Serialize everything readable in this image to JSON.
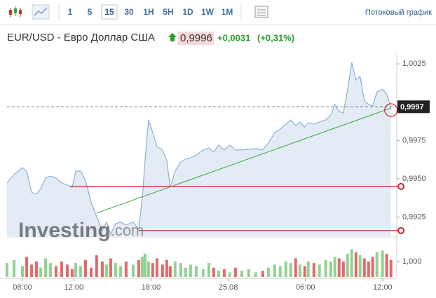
{
  "toolbar": {
    "intervals": [
      "1",
      "5",
      "15",
      "30",
      "1H",
      "5H",
      "1D",
      "1W",
      "1M"
    ],
    "selected": 2,
    "stream_label": "Потоковый график"
  },
  "header": {
    "symbol": "EUR/USD - Евро Доллар США",
    "price": "0,9996",
    "change": "+0,0031",
    "change_pct": "(+0,31%)"
  },
  "watermark": {
    "brand": "Investing",
    "suffix": ".com"
  },
  "chart_data": [
    {
      "type": "area",
      "color": "#8db1d6",
      "fill": "#e3ecf5",
      "x": [
        6.8,
        7.35,
        8,
        8.33,
        8.71,
        9.09,
        9.42,
        9.8,
        10.18,
        10.61,
        11.05,
        11.49,
        11.87,
        12.14,
        12.52,
        12.9,
        13.34,
        13.77,
        14.21,
        14.54,
        14.86,
        15.24,
        15.63,
        16.06,
        16.61,
        17.04,
        17.31,
        17.53,
        17.8,
        18.13,
        18.46,
        18.89,
        19.22,
        19.49,
        19.87,
        20.31,
        20.69,
        21.07,
        21.51,
        22.05,
        22.49,
        22.87,
        23.25,
        23.69,
        24.12,
        24.56,
        25.05,
        25.59,
        26.14,
        26.68,
        27.12,
        27.61,
        28.04,
        28.48,
        28.86,
        29.24,
        29.57,
        29.95,
        30.22,
        30.66,
        31.09,
        31.58,
        31.97,
        32.29,
        32.62,
        32.95,
        33.27,
        33.6,
        33.93,
        34.25,
        34.58,
        34.91,
        35.23,
        35.56,
        35.99,
        36.32,
        36.65
      ],
      "values": [
        0.99473,
        0.99528,
        0.99573,
        0.9955,
        0.99413,
        0.99399,
        0.99436,
        0.99505,
        0.99518,
        0.99505,
        0.99473,
        0.99459,
        0.99445,
        0.9955,
        0.9955,
        0.99491,
        0.99345,
        0.99253,
        0.99162,
        0.99217,
        0.99139,
        0.99207,
        0.99217,
        0.99198,
        0.99217,
        0.99171,
        0.99367,
        0.99619,
        0.99884,
        0.99802,
        0.9971,
        0.99688,
        0.99619,
        0.99445,
        0.9955,
        0.9961,
        0.99628,
        0.99637,
        0.99656,
        0.99688,
        0.99701,
        0.99674,
        0.9972,
        0.99688,
        0.9972,
        0.99688,
        0.99688,
        0.99692,
        0.99697,
        0.99688,
        0.99733,
        0.99802,
        0.99825,
        0.99857,
        0.99884,
        0.99848,
        0.9987,
        0.99838,
        0.99866,
        0.99857,
        0.9987,
        0.99884,
        0.99916,
        0.99985,
        0.99939,
        0.9993,
        1.00076,
        1.00259,
        1.00145,
        1.00168,
        1.00008,
        0.99985,
        0.99976,
        1.00067,
        1.00085,
        1.00053,
        0.99962
      ],
      "xlim": [
        6.8,
        37.1
      ],
      "ylim": [
        0.9912,
        1.0031
      ],
      "xticks": [
        {
          "value": 8,
          "label": "08:00"
        },
        {
          "value": 12,
          "label": "12:00"
        },
        {
          "value": 18,
          "label": "18:00"
        },
        {
          "value": 24,
          "label": "25.08"
        },
        {
          "value": 30,
          "label": "06:00"
        },
        {
          "value": 36,
          "label": "12:00"
        }
      ],
      "yticks": [
        {
          "value": 1.0025,
          "label": "1,0025"
        },
        {
          "value": 0.9975,
          "label": "0,9975"
        },
        {
          "value": 0.995,
          "label": "0,9950"
        },
        {
          "value": 0.9925,
          "label": "0,9925"
        }
      ],
      "hlines": [
        {
          "value": 0.9945,
          "x_start": 11.7,
          "color": "#c0282d"
        },
        {
          "value": 0.99162,
          "x_start": 17.04,
          "color": "#c0282d"
        }
      ],
      "trendline": {
        "x": [
          13.77,
          36.65
        ],
        "values": [
          0.99276,
          0.99962
        ],
        "color": "#3aa13a"
      },
      "last_price": {
        "value": 0.9997,
        "label": "0,9997"
      }
    },
    {
      "type": "bar",
      "up_color": "#93d193",
      "down_color": "#e26a6a",
      "x": [
        6.8,
        7.35,
        8,
        8.33,
        8.71,
        9.09,
        9.42,
        9.8,
        10.18,
        10.61,
        11.05,
        11.49,
        11.87,
        12.14,
        12.52,
        12.9,
        13.34,
        13.77,
        14.21,
        14.54,
        14.86,
        15.24,
        15.63,
        16.06,
        16.61,
        17.04,
        17.31,
        17.53,
        17.8,
        18.13,
        18.46,
        18.89,
        19.22,
        19.49,
        19.87,
        20.31,
        20.69,
        21.07,
        21.51,
        22.05,
        22.49,
        22.87,
        23.25,
        23.69,
        24.12,
        24.56,
        25.05,
        25.59,
        26.14,
        26.68,
        27.12,
        27.61,
        28.04,
        28.48,
        28.86,
        29.24,
        29.57,
        29.95,
        30.22,
        30.66,
        31.09,
        31.58,
        31.97,
        32.29,
        32.62,
        32.95,
        33.27,
        33.6,
        33.93,
        34.25,
        34.58,
        34.91,
        35.23,
        35.56,
        35.99,
        36.32,
        36.65
      ],
      "values": [
        0.9,
        1.1,
        0.7,
        1.3,
        0.8,
        1.0,
        0.6,
        1.2,
        0.9,
        0.7,
        1.0,
        0.8,
        0.5,
        0.9,
        0.7,
        1.1,
        0.6,
        1.4,
        1.0,
        0.8,
        1.2,
        0.9,
        0.7,
        1.0,
        0.8,
        1.1,
        1.3,
        1.5,
        1.0,
        0.9,
        1.2,
        0.8,
        1.1,
        0.7,
        1.0,
        0.9,
        0.6,
        0.8,
        0.7,
        0.5,
        0.9,
        0.6,
        0.4,
        0.5,
        0.3,
        0.6,
        0.4,
        0.5,
        0.3,
        0.4,
        0.6,
        0.8,
        0.7,
        1.0,
        0.9,
        1.2,
        0.8,
        0.7,
        1.0,
        0.9,
        0.8,
        1.1,
        1.0,
        1.3,
        1.2,
        1.0,
        1.5,
        1.8,
        1.6,
        1.4,
        1.2,
        1.0,
        1.3,
        1.6,
        1.7,
        1.5,
        1.1
      ],
      "xlim": [
        6.8,
        37.1
      ],
      "ylim": [
        0,
        1.9
      ],
      "yticks": [
        {
          "value": 1,
          "label": "1,000"
        }
      ]
    }
  ]
}
